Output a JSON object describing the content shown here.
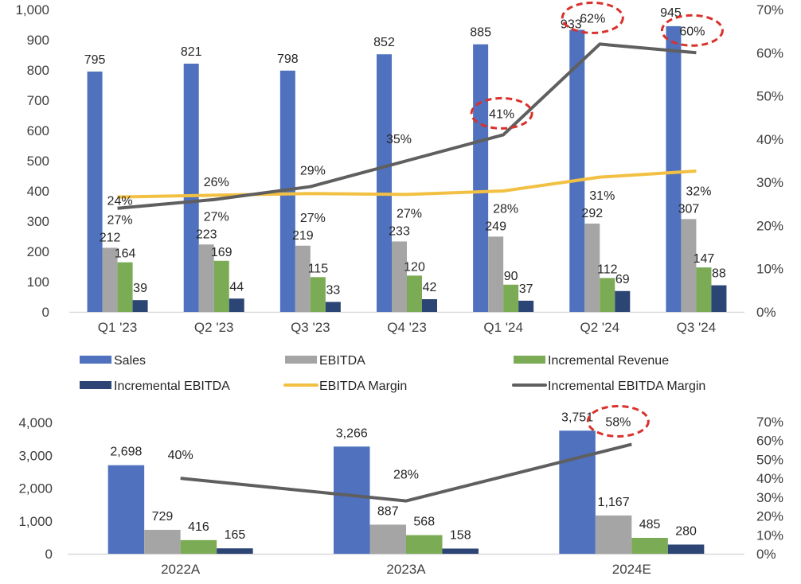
{
  "colors": {
    "sales": "#4f71be",
    "ebitda": "#a5a5a5",
    "incremental_revenue": "#7bab55",
    "incremental_ebitda": "#2c4575",
    "ebitda_margin": "#f2c043",
    "incremental_ebitda_margin": "#5f5f5f",
    "highlight": "#d9312b"
  },
  "chart_data": [
    {
      "type": "bar",
      "title": "",
      "categories": [
        "Q1 '23",
        "Q2 '23",
        "Q3 '23",
        "Q4 '23",
        "Q1 '24",
        "Q2 '24",
        "Q3 '24"
      ],
      "series": [
        {
          "name": "Sales",
          "kind": "bar",
          "values": [
            795,
            821,
            798,
            852,
            885,
            933,
            945
          ],
          "labels": [
            "795",
            "821",
            "798",
            "852",
            "885",
            "933",
            "945"
          ]
        },
        {
          "name": "EBITDA",
          "kind": "bar",
          "values": [
            212,
            223,
            219,
            233,
            249,
            292,
            307
          ],
          "labels": [
            "212",
            "223",
            "219",
            "233",
            "249",
            "292",
            "307"
          ]
        },
        {
          "name": "Incremental Revenue",
          "kind": "bar",
          "values": [
            164,
            169,
            115,
            120,
            90,
            112,
            147
          ],
          "labels": [
            "164",
            "169",
            "115",
            "120",
            "90",
            "112",
            "147"
          ]
        },
        {
          "name": "Incremental EBITDA",
          "kind": "bar",
          "values": [
            39,
            44,
            33,
            42,
            37,
            69,
            88
          ],
          "labels": [
            "39",
            "44",
            "33",
            "42",
            "37",
            "69",
            "88"
          ]
        },
        {
          "name": "EBITDA Margin",
          "kind": "line",
          "axis": "right",
          "values": [
            27,
            27,
            27,
            27,
            28,
            31,
            32
          ],
          "labels": [
            "27%",
            "27%",
            "27%",
            "27%",
            "28%",
            "31%",
            "32%"
          ]
        },
        {
          "name": "Incremental EBITDA Margin",
          "kind": "line",
          "axis": "right",
          "values": [
            24,
            26,
            29,
            35,
            41,
            62,
            60
          ],
          "labels": [
            "24%",
            "26%",
            "29%",
            "35%",
            "41%",
            "62%",
            "60%"
          ],
          "highlighted": [
            "41%",
            "62%",
            "60%"
          ]
        }
      ],
      "ylim": [
        0,
        1000
      ],
      "yticks": [
        "0",
        "100",
        "200",
        "300",
        "400",
        "500",
        "600",
        "700",
        "800",
        "900",
        "1,000"
      ],
      "y2lim": [
        0,
        70
      ],
      "y2ticks": [
        "0%",
        "10%",
        "20%",
        "30%",
        "40%",
        "50%",
        "60%",
        "70%"
      ],
      "legend": {
        "placement": "bottom",
        "entries": [
          "Sales",
          "EBITDA",
          "Incremental Revenue",
          "Incremental EBITDA",
          "EBITDA Margin",
          "Incremental EBITDA Margin"
        ]
      },
      "grid": false
    },
    {
      "type": "bar",
      "title": "",
      "categories": [
        "2022A",
        "2023A",
        "2024E"
      ],
      "series": [
        {
          "name": "Sales",
          "kind": "bar",
          "values": [
            2698,
            3266,
            3751
          ],
          "labels": [
            "2,698",
            "3,266",
            "3,751"
          ]
        },
        {
          "name": "EBITDA",
          "kind": "bar",
          "values": [
            729,
            887,
            1167
          ],
          "labels": [
            "729",
            "887",
            "1,167"
          ]
        },
        {
          "name": "Incremental Revenue",
          "kind": "bar",
          "values": [
            416,
            568,
            485
          ],
          "labels": [
            "416",
            "568",
            "485"
          ]
        },
        {
          "name": "Incremental EBITDA",
          "kind": "bar",
          "values": [
            165,
            158,
            280
          ],
          "labels": [
            "165",
            "158",
            "280"
          ]
        },
        {
          "name": "Incremental EBITDA Margin",
          "kind": "line",
          "axis": "right",
          "values": [
            40,
            28,
            58
          ],
          "labels": [
            "40%",
            "28%",
            "58%"
          ],
          "highlighted": [
            "58%"
          ]
        }
      ],
      "ylim": [
        0,
        4000
      ],
      "yticks": [
        "0",
        "1,000",
        "2,000",
        "3,000",
        "4,000"
      ],
      "y2lim": [
        0,
        70
      ],
      "y2ticks": [
        "0%",
        "10%",
        "20%",
        "30%",
        "40%",
        "50%",
        "60%",
        "70%"
      ],
      "grid": false
    }
  ]
}
